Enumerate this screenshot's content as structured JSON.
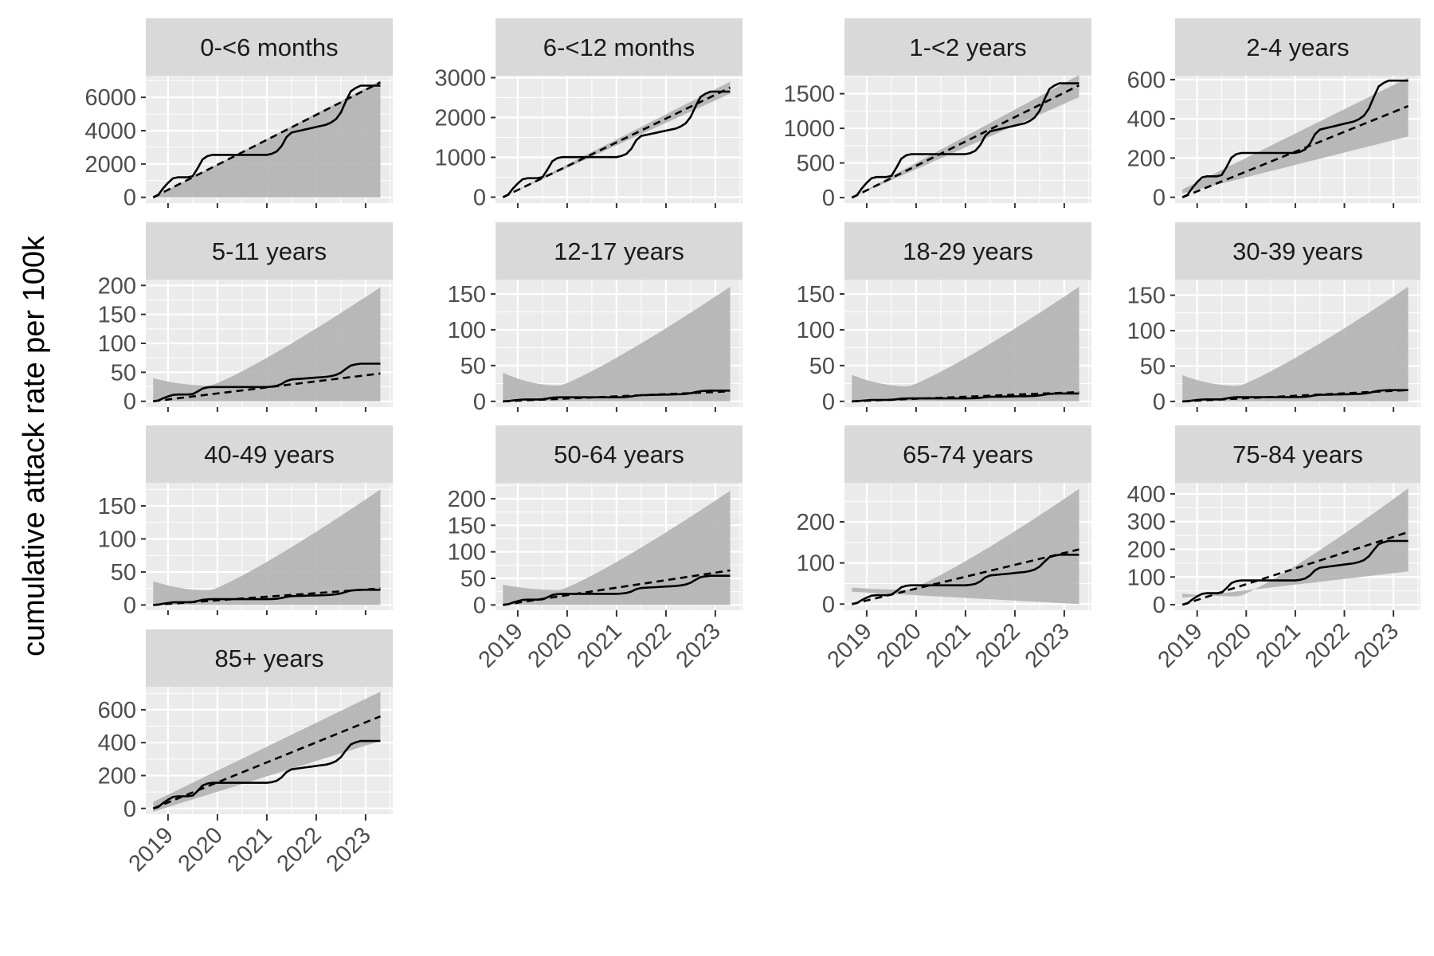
{
  "chart_data": {
    "type": "line",
    "layout": "facet_wrap",
    "ylabel": "cumulative attack rate per 100k",
    "xlabel": "",
    "x_tick_labels": [
      "2019",
      "2020",
      "2021",
      "2022",
      "2023"
    ],
    "x_ticks": [
      2019,
      2020,
      2021,
      2022,
      2023
    ],
    "xlim": [
      2018.55,
      2023.55
    ],
    "x_tick_angle": 45,
    "grid": true,
    "legend": "none",
    "colors": {
      "panel_bg": "#ebebeb",
      "grid": "#ffffff",
      "strip_bg": "#d9d9d9",
      "ribbon": "#b3b3b3",
      "observed_line": "#000000",
      "fitted_line": "#000000"
    },
    "series_styles": {
      "observed": "solid",
      "fitted": "dashed",
      "interval": "ribbon"
    },
    "x_sample": [
      2018.7,
      2018.8,
      2018.9,
      2019.0,
      2019.1,
      2019.2,
      2019.3,
      2019.4,
      2019.5,
      2019.6,
      2019.7,
      2019.8,
      2019.9,
      2020.0,
      2020.1,
      2020.2,
      2020.3,
      2020.4,
      2020.5,
      2020.6,
      2020.7,
      2020.8,
      2020.9,
      2021.0,
      2021.1,
      2021.2,
      2021.3,
      2021.4,
      2021.5,
      2021.6,
      2021.7,
      2021.8,
      2021.9,
      2022.0,
      2022.1,
      2022.2,
      2022.3,
      2022.4,
      2022.5,
      2022.6,
      2022.7,
      2022.8,
      2022.9,
      2023.0,
      2023.1,
      2023.2,
      2023.3
    ],
    "panels": [
      {
        "title": "0-<6 months",
        "yticks": [
          0,
          2000,
          4000,
          6000
        ],
        "ylim": [
          -350,
          7300
        ],
        "observed_final": 6700,
        "fitted_end": 6900,
        "band_lower": [
          0,
          0
        ],
        "band_upper": [
          0,
          7000
        ],
        "band_mid_min": 0
      },
      {
        "title": "6-<12 months",
        "yticks": [
          0,
          1000,
          2000,
          3000
        ],
        "ylim": [
          -150,
          3050
        ],
        "observed_final": 2650,
        "fitted_end": 2750,
        "band_lower": [
          0,
          2600
        ],
        "band_upper": [
          0,
          2900
        ],
        "band_mid_min": 0
      },
      {
        "title": "1-<2 years",
        "yticks": [
          0,
          500,
          1000,
          1500
        ],
        "ylim": [
          -80,
          1760
        ],
        "observed_final": 1650,
        "fitted_end": 1620,
        "band_lower": [
          0,
          1450
        ],
        "band_upper": [
          0,
          1770
        ],
        "band_mid_min": 0
      },
      {
        "title": "2-4 years",
        "yticks": [
          0,
          200,
          400,
          600
        ],
        "ylim": [
          -30,
          620
        ],
        "observed_final": 595,
        "fitted_end": 465,
        "band_lower": [
          20,
          310
        ],
        "band_upper": [
          40,
          610
        ],
        "band_mid_min": 0
      },
      {
        "title": "5-11 years",
        "yticks": [
          0,
          50,
          100,
          150,
          200
        ],
        "ylim": [
          -10,
          210
        ],
        "observed_final": 65,
        "fitted_end": 48,
        "band_lower": [
          0,
          0
        ],
        "band_upper": [
          40,
          197
        ],
        "band_mid_min": 27
      },
      {
        "title": "12-17 years",
        "yticks": [
          0,
          50,
          100,
          150
        ],
        "ylim": [
          -8,
          170
        ],
        "observed_final": 15,
        "fitted_end": 14,
        "band_lower": [
          0,
          0
        ],
        "band_upper": [
          40,
          160
        ],
        "band_mid_min": 22
      },
      {
        "title": "18-29 years",
        "yticks": [
          0,
          50,
          100,
          150
        ],
        "ylim": [
          -8,
          170
        ],
        "observed_final": 11,
        "fitted_end": 13,
        "band_lower": [
          0,
          0
        ],
        "band_upper": [
          37,
          160
        ],
        "band_mid_min": 21
      },
      {
        "title": "30-39 years",
        "yticks": [
          0,
          50,
          100,
          150
        ],
        "ylim": [
          -8,
          172
        ],
        "observed_final": 16,
        "fitted_end": 16,
        "band_lower": [
          0,
          0
        ],
        "band_upper": [
          37,
          162
        ],
        "band_mid_min": 22
      },
      {
        "title": "40-49 years",
        "yticks": [
          0,
          50,
          100,
          150
        ],
        "ylim": [
          -8,
          185
        ],
        "observed_final": 23,
        "fitted_end": 25,
        "band_lower": [
          0,
          0
        ],
        "band_upper": [
          36,
          175
        ],
        "band_mid_min": 22
      },
      {
        "title": "50-64 years",
        "yticks": [
          0,
          50,
          100,
          150,
          200
        ],
        "ylim": [
          -10,
          230
        ],
        "observed_final": 55,
        "fitted_end": 65,
        "band_lower": [
          0,
          0
        ],
        "band_upper": [
          38,
          215
        ],
        "band_mid_min": 28
      },
      {
        "title": "65-74 years",
        "yticks": [
          0,
          100,
          200
        ],
        "ylim": [
          -15,
          295
        ],
        "observed_final": 120,
        "fitted_end": 133,
        "band_lower": [
          30,
          0
        ],
        "band_upper": [
          40,
          280
        ],
        "band_mid_min": 35
      },
      {
        "title": "75-84 years",
        "yticks": [
          0,
          100,
          200,
          300,
          400
        ],
        "ylim": [
          -20,
          440
        ],
        "observed_final": 230,
        "fitted_end": 262,
        "band_lower": [
          25,
          120
        ],
        "band_upper": [
          40,
          420
        ],
        "band_mid_min": 30
      },
      {
        "title": "85+ years",
        "yticks": [
          0,
          200,
          400,
          600
        ],
        "ylim": [
          -35,
          740
        ],
        "observed_final": 410,
        "fitted_end": 560,
        "band_lower": [
          -20,
          410
        ],
        "band_upper": [
          40,
          710
        ],
        "band_mid_min": 0
      }
    ],
    "observed_shape": [
      0,
      0.02,
      0.08,
      0.13,
      0.17,
      0.18,
      0.18,
      0.18,
      0.19,
      0.26,
      0.34,
      0.37,
      0.38,
      0.38,
      0.38,
      0.38,
      0.38,
      0.38,
      0.38,
      0.38,
      0.38,
      0.38,
      0.38,
      0.38,
      0.39,
      0.41,
      0.46,
      0.54,
      0.58,
      0.59,
      0.6,
      0.61,
      0.62,
      0.63,
      0.64,
      0.65,
      0.67,
      0.7,
      0.76,
      0.86,
      0.95,
      0.98,
      1.0,
      1.0,
      1.0,
      1.0,
      1.0
    ]
  }
}
